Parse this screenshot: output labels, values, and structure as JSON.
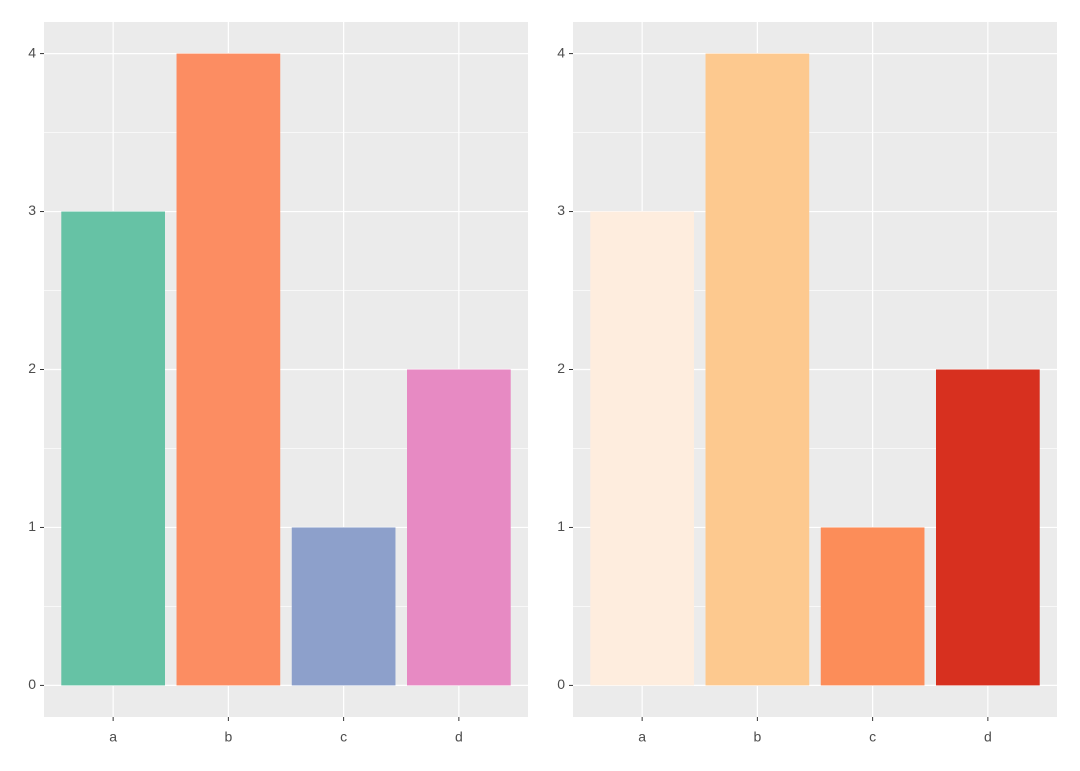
{
  "chart_data": [
    {
      "type": "bar",
      "categories": [
        "a",
        "b",
        "c",
        "d"
      ],
      "values": [
        3,
        4,
        1,
        2
      ],
      "colors": [
        "#66c2a5",
        "#fc8d62",
        "#8da0cb",
        "#e78ac3"
      ],
      "ylim": [
        -0.2,
        4.2
      ],
      "yticks": [
        0,
        1,
        2,
        3,
        4
      ],
      "grid": true,
      "background": "#ebebeb"
    },
    {
      "type": "bar",
      "categories": [
        "a",
        "b",
        "c",
        "d"
      ],
      "values": [
        3,
        4,
        1,
        2
      ],
      "colors": [
        "#feedde",
        "#fdc98f",
        "#fc8d59",
        "#d7301f"
      ],
      "ylim": [
        -0.2,
        4.2
      ],
      "yticks": [
        0,
        1,
        2,
        3,
        4
      ],
      "grid": true,
      "background": "#ebebeb"
    }
  ]
}
